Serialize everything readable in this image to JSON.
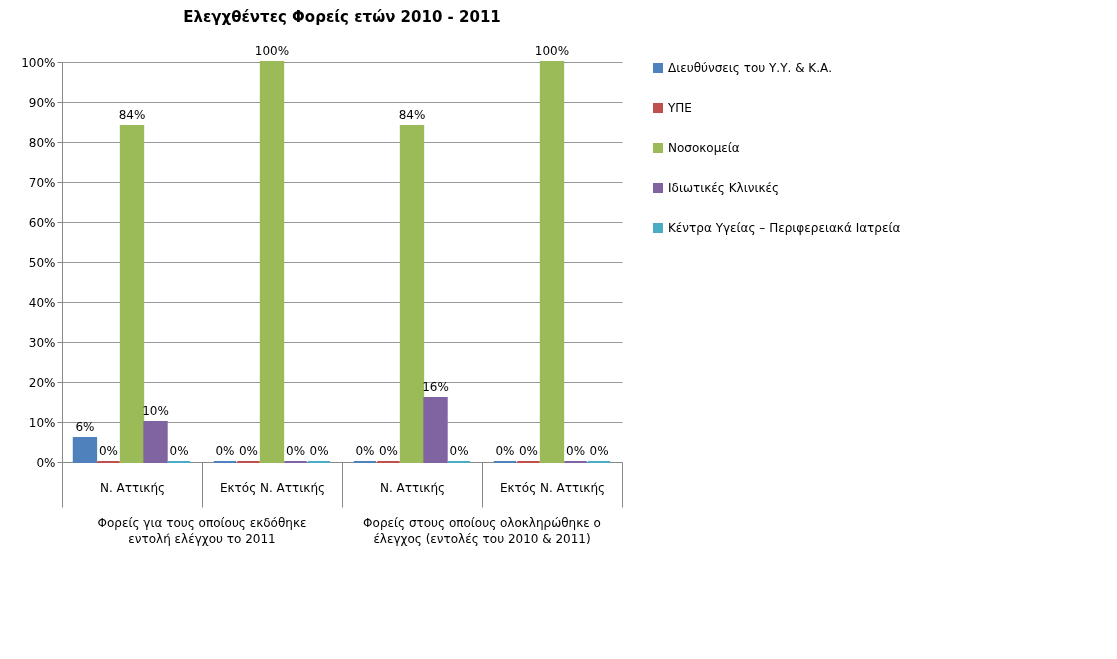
{
  "chart_data": {
    "type": "bar",
    "title": "Ελεγχθέντες Φορείς ετών 2010 - 2011",
    "categories": [
      "Ν. Αττικής",
      "Εκτός Ν. Αττικής",
      "Ν. Αττικής",
      "Εκτός Ν. Αττικής"
    ],
    "series": [
      {
        "name": "Διευθύνσεις του Υ.Υ. & Κ.Α.",
        "color": "#4f81bd",
        "values": [
          6,
          0,
          0,
          0
        ],
        "value_labels": [
          "6%",
          "0%",
          "0%",
          "0%"
        ]
      },
      {
        "name": "ΥΠΕ",
        "color": "#c0504d",
        "values": [
          0,
          0,
          0,
          0
        ],
        "value_labels": [
          "0%",
          "0%",
          "0%",
          "0%"
        ]
      },
      {
        "name": "Νοσοκομεία",
        "color": "#9bbb59",
        "values": [
          84,
          100,
          84,
          100
        ],
        "value_labels": [
          "84%",
          "100%",
          "84%",
          "100%"
        ]
      },
      {
        "name": "Ιδιωτικές Κλινικές",
        "color": "#8064a2",
        "values": [
          10,
          0,
          16,
          0
        ],
        "value_labels": [
          "10%",
          "0%",
          "16%",
          "0%"
        ]
      },
      {
        "name": "Κέντρα Υγείας – Περιφερειακά Ιατρεία",
        "color": "#4bacc6",
        "values": [
          0,
          0,
          0,
          0
        ],
        "value_labels": [
          "0%",
          "0%",
          "0%",
          "0%"
        ]
      }
    ],
    "annotations": [
      "Φορείς για τους οποίους εκδόθηκε εντολή ελέγχου το 2011",
      "Φορείς στους οποίους ολοκληρώθηκε ο έλεγχος (εντολές του 2010 & 2011)"
    ],
    "ylim": [
      0,
      100
    ],
    "yticks": [
      {
        "value": 0,
        "label": "0%"
      },
      {
        "value": 10,
        "label": "10%"
      },
      {
        "value": 20,
        "label": "20%"
      },
      {
        "value": 30,
        "label": "30%"
      },
      {
        "value": 40,
        "label": "40%"
      },
      {
        "value": 50,
        "label": "50%"
      },
      {
        "value": 60,
        "label": "60%"
      },
      {
        "value": 70,
        "label": "70%"
      },
      {
        "value": 80,
        "label": "80%"
      },
      {
        "value": 90,
        "label": "90%"
      },
      {
        "value": 100,
        "label": "100%"
      }
    ],
    "grid": "y",
    "legend": "right"
  }
}
